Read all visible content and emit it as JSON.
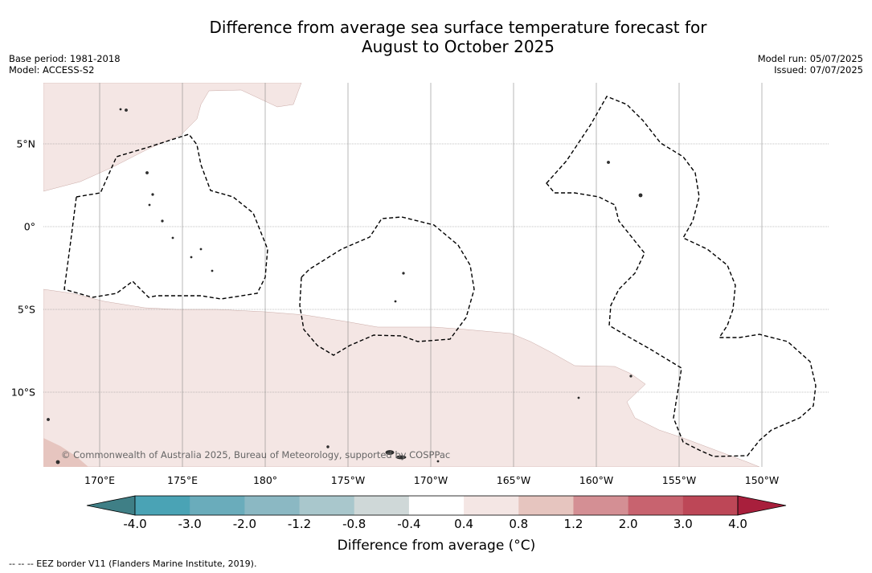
{
  "title": {
    "line1": "Difference from average sea surface temperature forecast for",
    "line2": "August to October 2025"
  },
  "meta_left": {
    "base_period": "Base period: 1981-2018",
    "model": "Model: ACCESS-S2"
  },
  "meta_right": {
    "model_run": "Model run: 05/07/2025",
    "issued": "Issued: 07/07/2025"
  },
  "map": {
    "longitude_labels": [
      "170°E",
      "175°E",
      "180°",
      "175°W",
      "170°W",
      "165°W",
      "160°W",
      "155°W",
      "150°W"
    ],
    "latitude_labels": [
      "5°N",
      "0°",
      "5°S",
      "10°S"
    ],
    "copyright": "© Commonwealth of Australia 2025, Bureau of Meteorology, supported by COSPPac",
    "colors": {
      "anomaly_0_4_to_0_8": "#f4e6e4",
      "anomaly_1_2_to_2_0_area": "#e6c5bf",
      "land": "#333333",
      "eez_border": "#000000",
      "gridline": "#888888"
    }
  },
  "colorbar": {
    "ticks": [
      "-4.0",
      "-3.0",
      "-2.0",
      "-1.2",
      "-0.8",
      "-0.4",
      "0.4",
      "0.8",
      "1.2",
      "2.0",
      "3.0",
      "4.0"
    ],
    "colors": [
      "#3f7f86",
      "#4aa3b5",
      "#6aacbb",
      "#8bb8c3",
      "#a9c7cc",
      "#cfd8d8",
      "#ffffff",
      "#f4e6e4",
      "#e6c5bf",
      "#d48f94",
      "#c8636f",
      "#bd4757",
      "#a81f3c"
    ],
    "label": "Difference from average (°C)"
  },
  "footnote": "--  --  -- EEZ border V11 (Flanders Marine Institute, 2019)."
}
